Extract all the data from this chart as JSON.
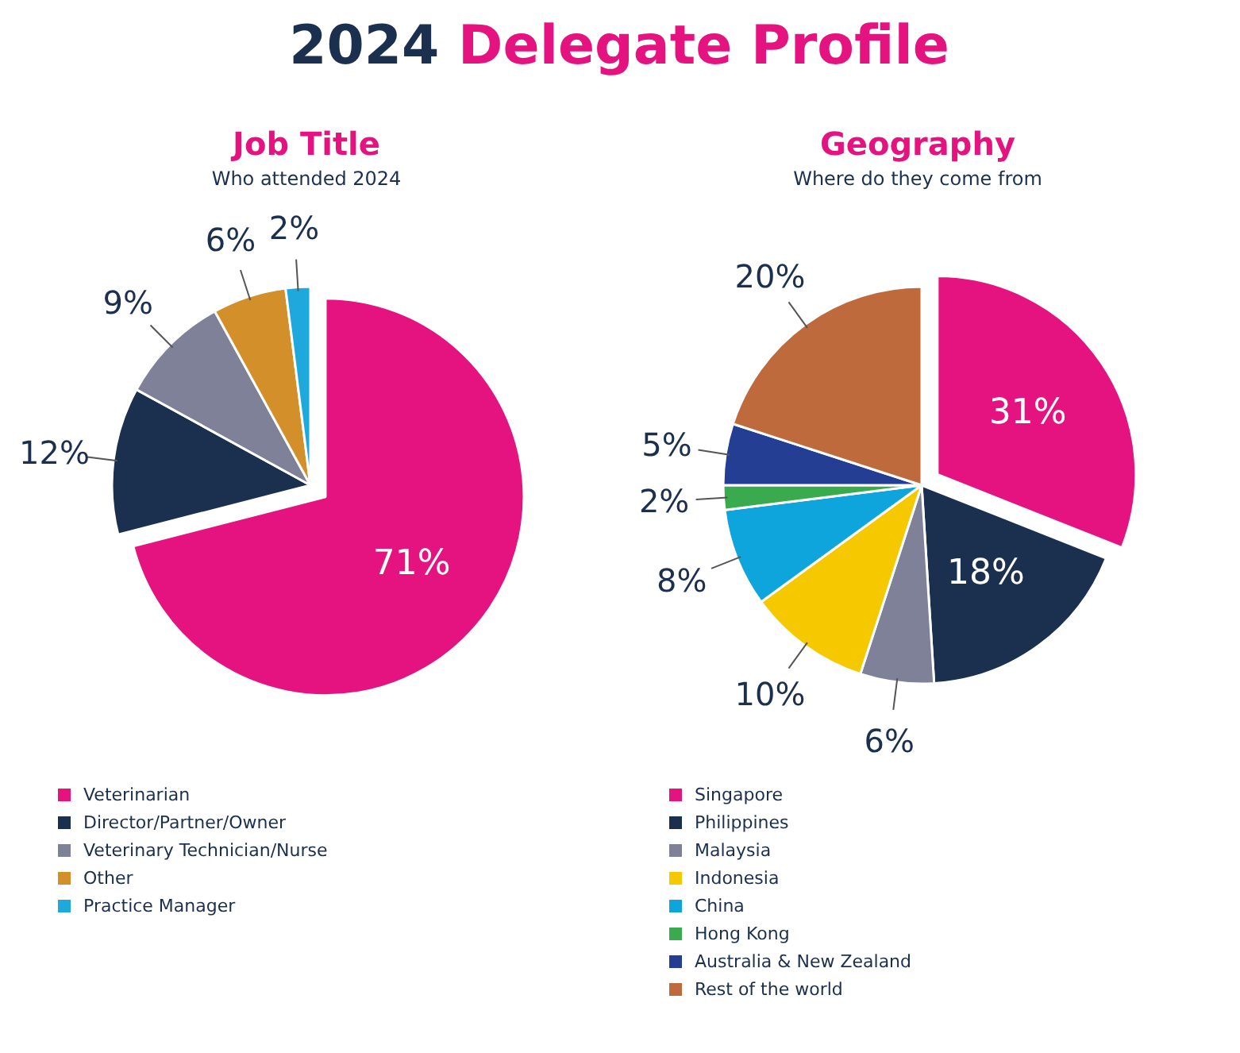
{
  "chart_data": [
    {
      "type": "pie",
      "title": "Job Title",
      "subtitle": "Who attended 2024",
      "annotations": [
        "2024 Delegate Profile"
      ],
      "categories": [
        "Veterinarian",
        "Director/Partner/Owner",
        "Veterinary Technician/Nurse",
        "Other",
        "Practice Manager"
      ],
      "values": [
        71,
        12,
        9,
        6,
        2
      ],
      "value_labels": [
        "71%",
        "12%",
        "9%",
        "6%",
        "2%"
      ],
      "colors": [
        "#e5137f",
        "#1b2f4e",
        "#7f8199",
        "#d38f2a",
        "#1ea8dc"
      ],
      "legend": "bottom"
    },
    {
      "type": "pie",
      "title": "Geography",
      "subtitle": "Where do they come from",
      "categories": [
        "Singapore",
        "Philippines",
        "Malaysia",
        "Indonesia",
        "China",
        "Hong Kong",
        "Australia & New Zealand",
        "Rest of the world"
      ],
      "values": [
        31,
        18,
        6,
        10,
        8,
        2,
        5,
        20
      ],
      "value_labels": [
        "31%",
        "18%",
        "6%",
        "10%",
        "8%",
        "2%",
        "5%",
        "20%"
      ],
      "colors": [
        "#e5137f",
        "#1b2f4e",
        "#7f8199",
        "#f6c800",
        "#0ea5dc",
        "#3aaa4f",
        "#243e94",
        "#bf6a3c"
      ],
      "legend": "bottom"
    }
  ]
}
